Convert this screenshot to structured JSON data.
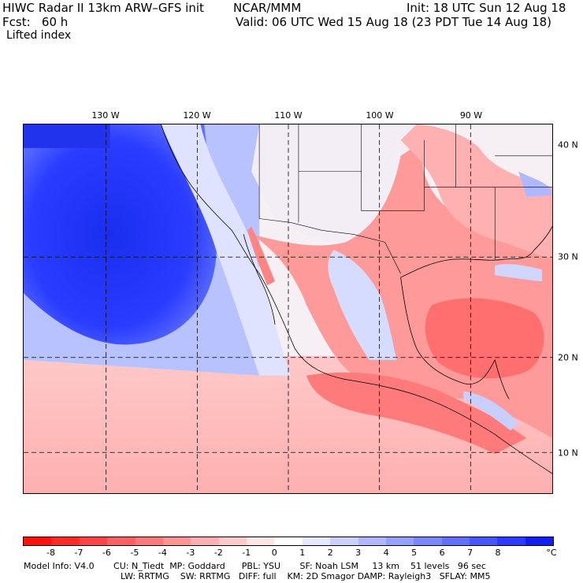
{
  "header": {
    "line1_left": "HIWC Radar II 13km ARW–GFS init",
    "line1_mid": "NCAR/MMM",
    "line1_right": "Init: 18 UTC Sun 12 Aug 18",
    "line2_left": "Fcst:   60 h",
    "line2_right": "Valid: 06 UTC Wed 15 Aug 18 (23 PDT Tue 14 Aug 18)",
    "field": "Lifted index"
  },
  "map": {
    "lon_labels": [
      "130 W",
      "120 W",
      "110 W",
      "100 W",
      "90 W"
    ],
    "lat_labels": [
      "40 N",
      "30 N",
      "20 N",
      "10 N"
    ]
  },
  "colorbar": {
    "ticks": [
      "-8",
      "-7",
      "-6",
      "-5",
      "-4",
      "-3",
      "-2",
      "-1",
      "0",
      "1",
      "2",
      "3",
      "4",
      "5",
      "6",
      "7",
      "8"
    ],
    "unit": "°C",
    "colors": [
      "#ff1010",
      "#ff2a2a",
      "#ff4545",
      "#ff6060",
      "#ff7a7a",
      "#ff9595",
      "#ffb0b0",
      "#ffcaca",
      "#ffe5e5",
      "#ffffff",
      "#e5e8ff",
      "#cad0ff",
      "#b0b8ff",
      "#95a0ff",
      "#7a88ff",
      "#6070ff",
      "#4558ff",
      "#2a3cff",
      "#1020f0"
    ]
  },
  "footer": {
    "line1": "Model Info: V4.0       CU: N_Tiedt  MP: Goddard      PBL: YSU       SF: Noah LSM     13 km    51 levels   96 sec",
    "line2": "LW: RRTMG    SW: RRTMG   DIFF: full    KM: 2D Smagor DAMP: Rayleigh3   SFLAY: MM5"
  }
}
